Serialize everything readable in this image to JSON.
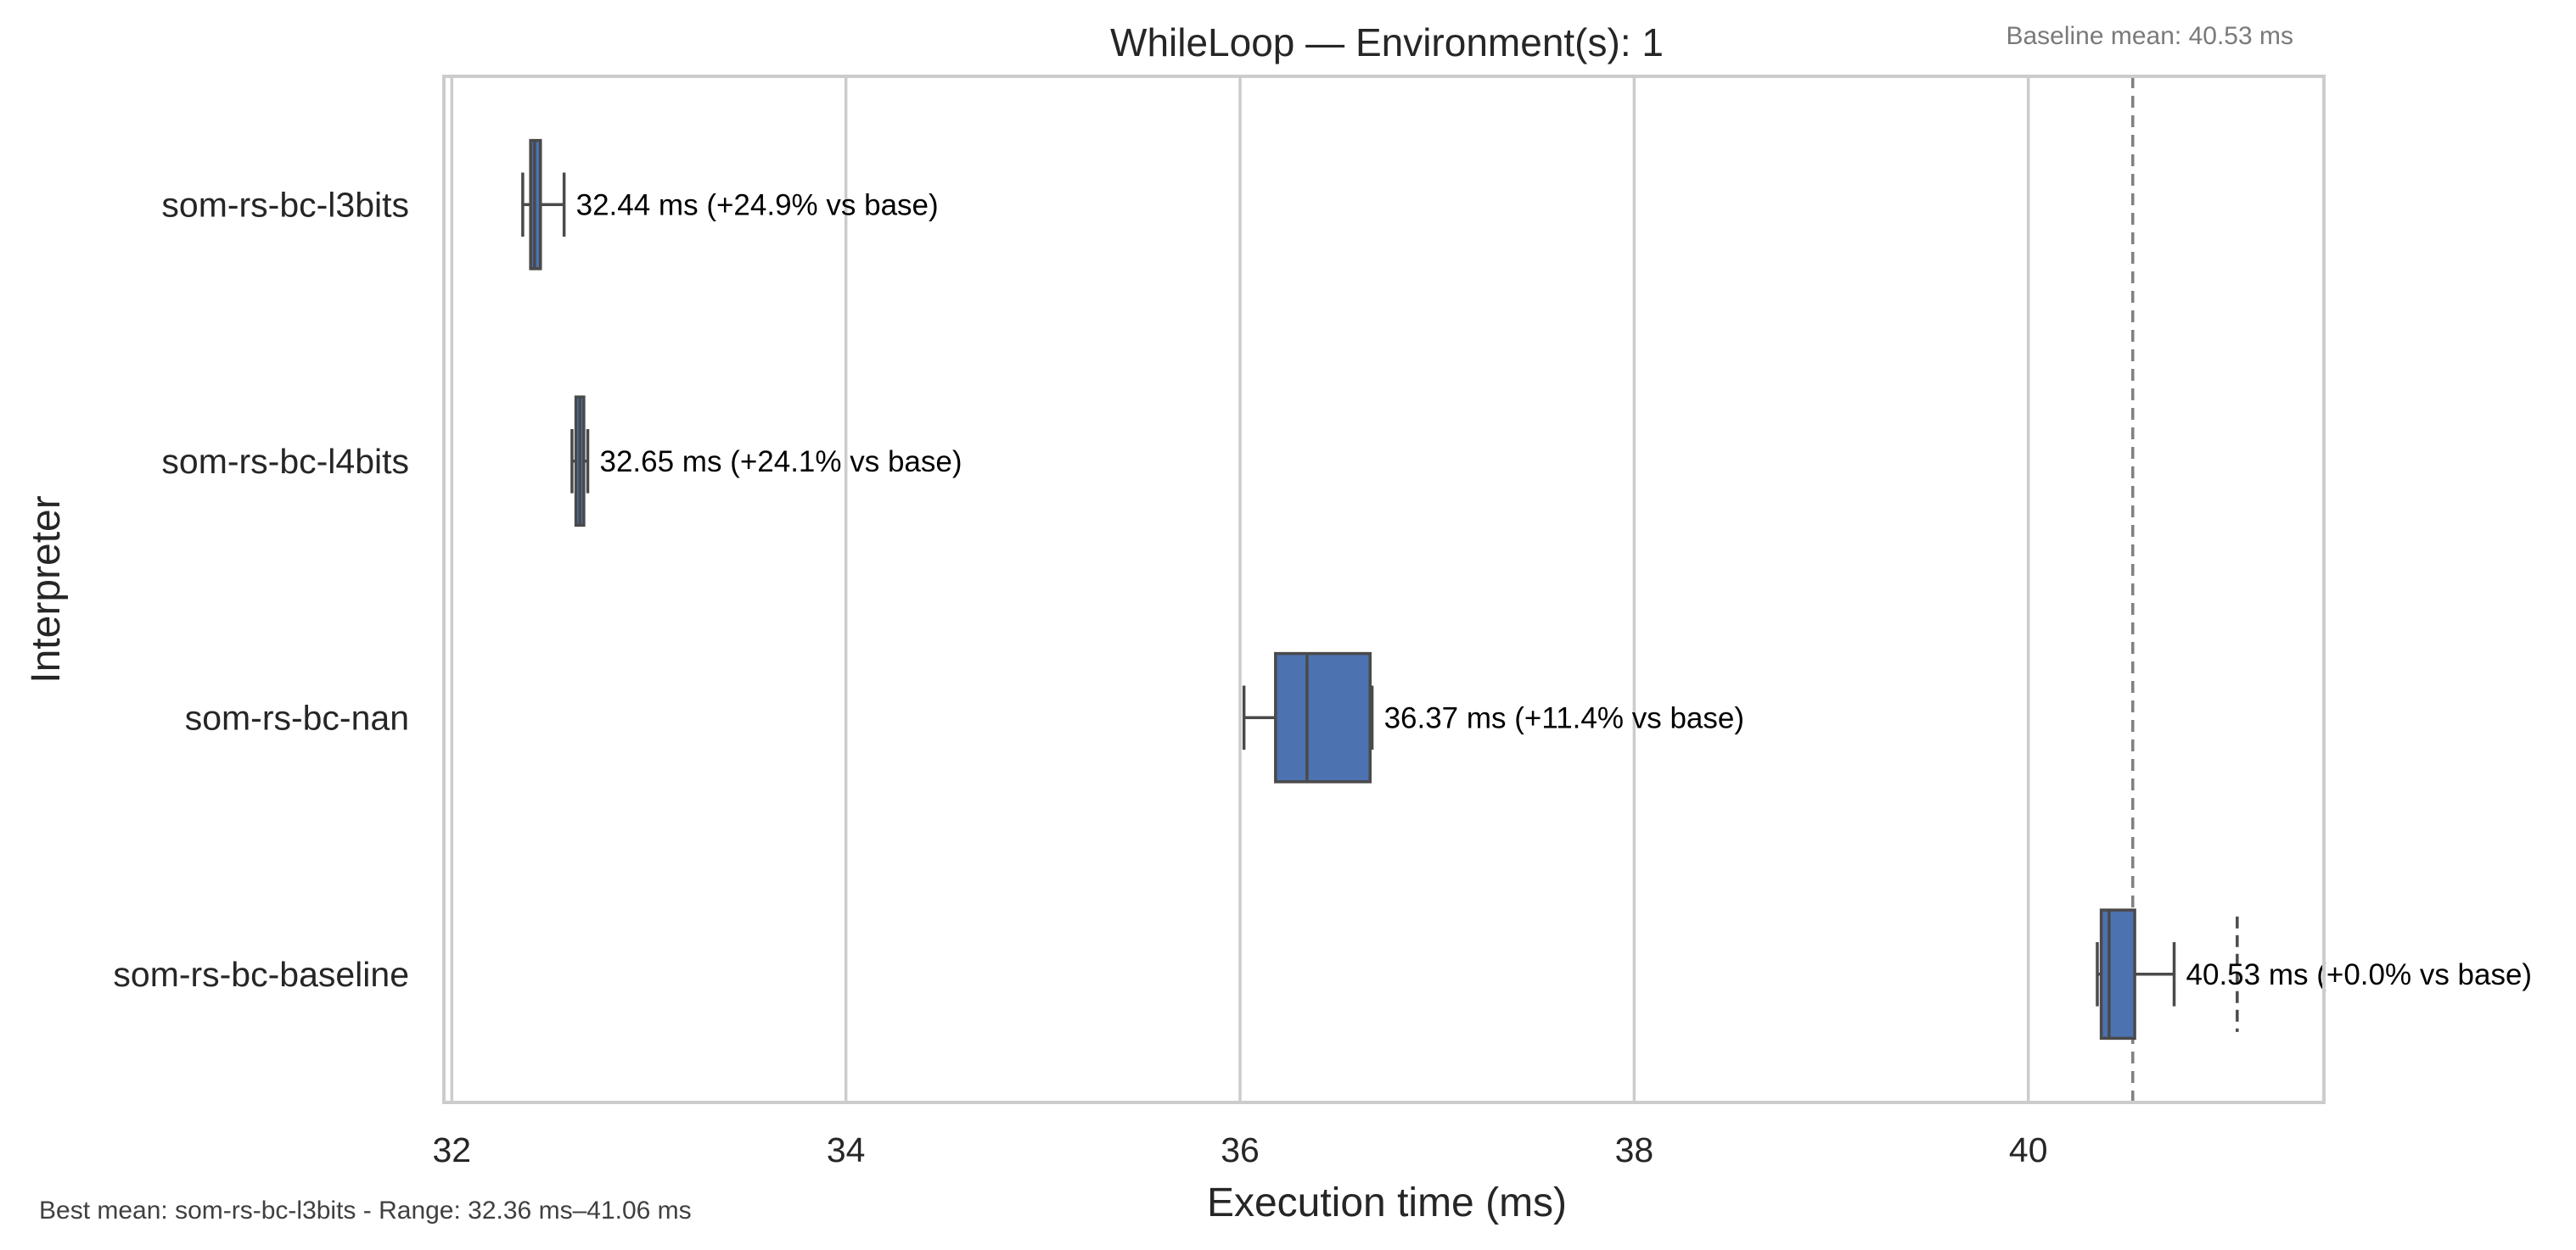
{
  "chart_data": {
    "type": "box",
    "orientation": "horizontal",
    "title": "WhileLoop — Environment(s): 1",
    "xlabel": "Execution time (ms)",
    "ylabel": "Interpreter",
    "xlim": [
      31.96,
      41.5
    ],
    "x_ticks": [
      32,
      34,
      36,
      38,
      40
    ],
    "grid": "vertical",
    "baseline": {
      "value": 40.53,
      "label": "Baseline mean: 40.53 ms"
    },
    "footer": "Best mean: som-rs-bc-l3bits - Range: 32.36 ms–41.06 ms",
    "categories": [
      "som-rs-bc-l3bits",
      "som-rs-bc-l4bits",
      "som-rs-bc-nan",
      "som-rs-bc-baseline"
    ],
    "series": [
      {
        "name": "som-rs-bc-l3bits",
        "whisker_low": 32.36,
        "q1": 32.4,
        "median": 32.42,
        "q3": 32.45,
        "whisker_high": 32.57,
        "fliers": [],
        "mean": 32.44,
        "annotation": "32.44 ms  (+24.9% vs base)",
        "color": "#4c72b0"
      },
      {
        "name": "som-rs-bc-l4bits",
        "whisker_low": 32.61,
        "q1": 32.63,
        "median": 32.65,
        "q3": 32.67,
        "whisker_high": 32.69,
        "fliers": [],
        "mean": 32.65,
        "annotation": "32.65 ms  (+24.1% vs base)",
        "color": "#4c72b0"
      },
      {
        "name": "som-rs-bc-nan",
        "whisker_low": 36.02,
        "q1": 36.18,
        "median": 36.34,
        "q3": 36.66,
        "whisker_high": 36.67,
        "fliers": [],
        "mean": 36.37,
        "annotation": "36.37 ms  (+11.4% vs base)",
        "color": "#4c72b0"
      },
      {
        "name": "som-rs-bc-baseline",
        "whisker_low": 40.35,
        "q1": 40.37,
        "median": 40.41,
        "q3": 40.54,
        "whisker_high": 40.74,
        "fliers": [
          41.06
        ],
        "mean": 40.53,
        "annotation": "40.53 ms  (+0.0% vs base)",
        "color": "#4c72b0"
      }
    ]
  }
}
